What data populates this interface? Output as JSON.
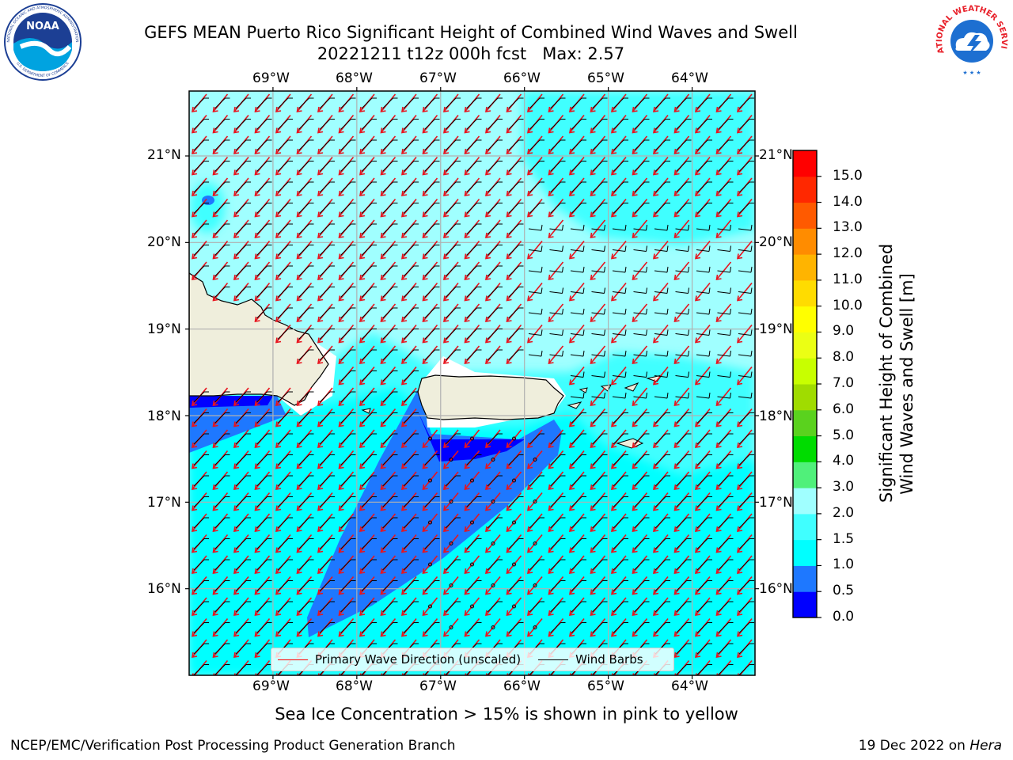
{
  "header": {
    "title_line1": "GEFS MEAN Puerto Rico Significant Height of Combined Wind Waves and Swell",
    "title_line2": "20221211 t12z 000h fcst   Max: 2.57"
  },
  "logos": {
    "left": {
      "name": "NOAA",
      "ring_text_top": "NATIONAL OCEANIC AND ATMOSPHERIC ADMINISTRATION",
      "ring_text_bottom": "U.S. DEPARTMENT OF COMMERCE"
    },
    "right": {
      "name": "NATIONAL WEATHER SERVICE"
    }
  },
  "map": {
    "lon_labels": [
      "69°W",
      "68°W",
      "67°W",
      "66°W",
      "65°W",
      "64°W"
    ],
    "lat_labels": [
      "21°N",
      "20°N",
      "19°N",
      "18°N",
      "17°N",
      "16°N"
    ],
    "extent": {
      "lon_min": -70.0,
      "lon_max": -63.25,
      "lat_min": 15.0,
      "lat_max": 21.75
    },
    "grid": true,
    "field_max": 2.57
  },
  "legend": {
    "wave_label": "Primary Wave Direction (unscaled)",
    "wave_color": "#ff0000",
    "barb_label": "Wind Barbs",
    "barb_color": "#000000"
  },
  "colorbar": {
    "label": "Significant Height of Combined Wind Waves and Swell [m]",
    "label_line1": "Significant Height of Combined",
    "label_line2": "Wind Waves and Swell [m]",
    "ticks": [
      "0.0",
      "0.5",
      "1.0",
      "1.5",
      "2.0",
      "3.0",
      "4.0",
      "5.0",
      "6.0",
      "7.0",
      "8.0",
      "9.0",
      "10.0",
      "11.0",
      "12.0",
      "13.0",
      "14.0",
      "15.0"
    ],
    "colors": [
      "#0000ff",
      "#1e78ff",
      "#00ffff",
      "#40ffff",
      "#a0ffff",
      "#50f07a",
      "#00dc00",
      "#5ad21e",
      "#a0dc00",
      "#c8ff00",
      "#ebff14",
      "#ffff00",
      "#ffdc00",
      "#ffb400",
      "#ff8c00",
      "#ff5a00",
      "#ff2800",
      "#ff0000"
    ]
  },
  "notes": {
    "sea_ice": "Sea Ice Concentration > 15% is shown in pink to yellow",
    "footer_left": "NCEP/EMC/Verification Post Processing Product Generation Branch",
    "footer_right_prefix": "19 Dec 2022 on ",
    "footer_right_host": "Hera"
  }
}
